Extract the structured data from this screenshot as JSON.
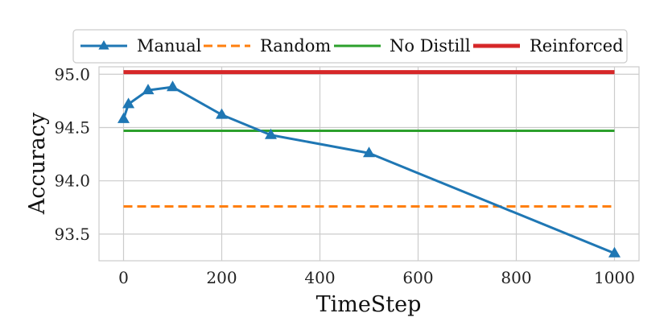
{
  "chart_data": {
    "type": "line",
    "title": "",
    "xlabel": "TimeStep",
    "ylabel": "Accuracy",
    "xlim": [
      -50,
      1050
    ],
    "ylim": [
      93.25,
      95.07
    ],
    "xticks": [
      0,
      200,
      400,
      600,
      800,
      1000
    ],
    "xtick_labels": [
      "0",
      "200",
      "400",
      "600",
      "800",
      "1000"
    ],
    "yticks": [
      93.5,
      94.0,
      94.5,
      95.0
    ],
    "ytick_labels": [
      "93.5",
      "94.0",
      "94.5",
      "95.0"
    ],
    "grid": true,
    "legend_position": "top",
    "series": [
      {
        "name": "Manual",
        "style": "solid-triangle",
        "color": "#1f77b4",
        "x": [
          0,
          10,
          50,
          100,
          200,
          300,
          500,
          1000
        ],
        "values": [
          94.58,
          94.72,
          94.85,
          94.88,
          94.62,
          94.43,
          94.26,
          93.32
        ]
      },
      {
        "name": "Random",
        "style": "dashed",
        "color": "#ff7f0e",
        "x": [
          0,
          1000
        ],
        "values": [
          93.76,
          93.76
        ]
      },
      {
        "name": "No Distill",
        "style": "solid",
        "color": "#2ca02c",
        "x": [
          0,
          1000
        ],
        "values": [
          94.47,
          94.47
        ]
      },
      {
        "name": "Reinforced",
        "style": "solid-thick",
        "color": "#d62728",
        "x": [
          0,
          1000
        ],
        "values": [
          95.02,
          95.02
        ]
      }
    ]
  }
}
